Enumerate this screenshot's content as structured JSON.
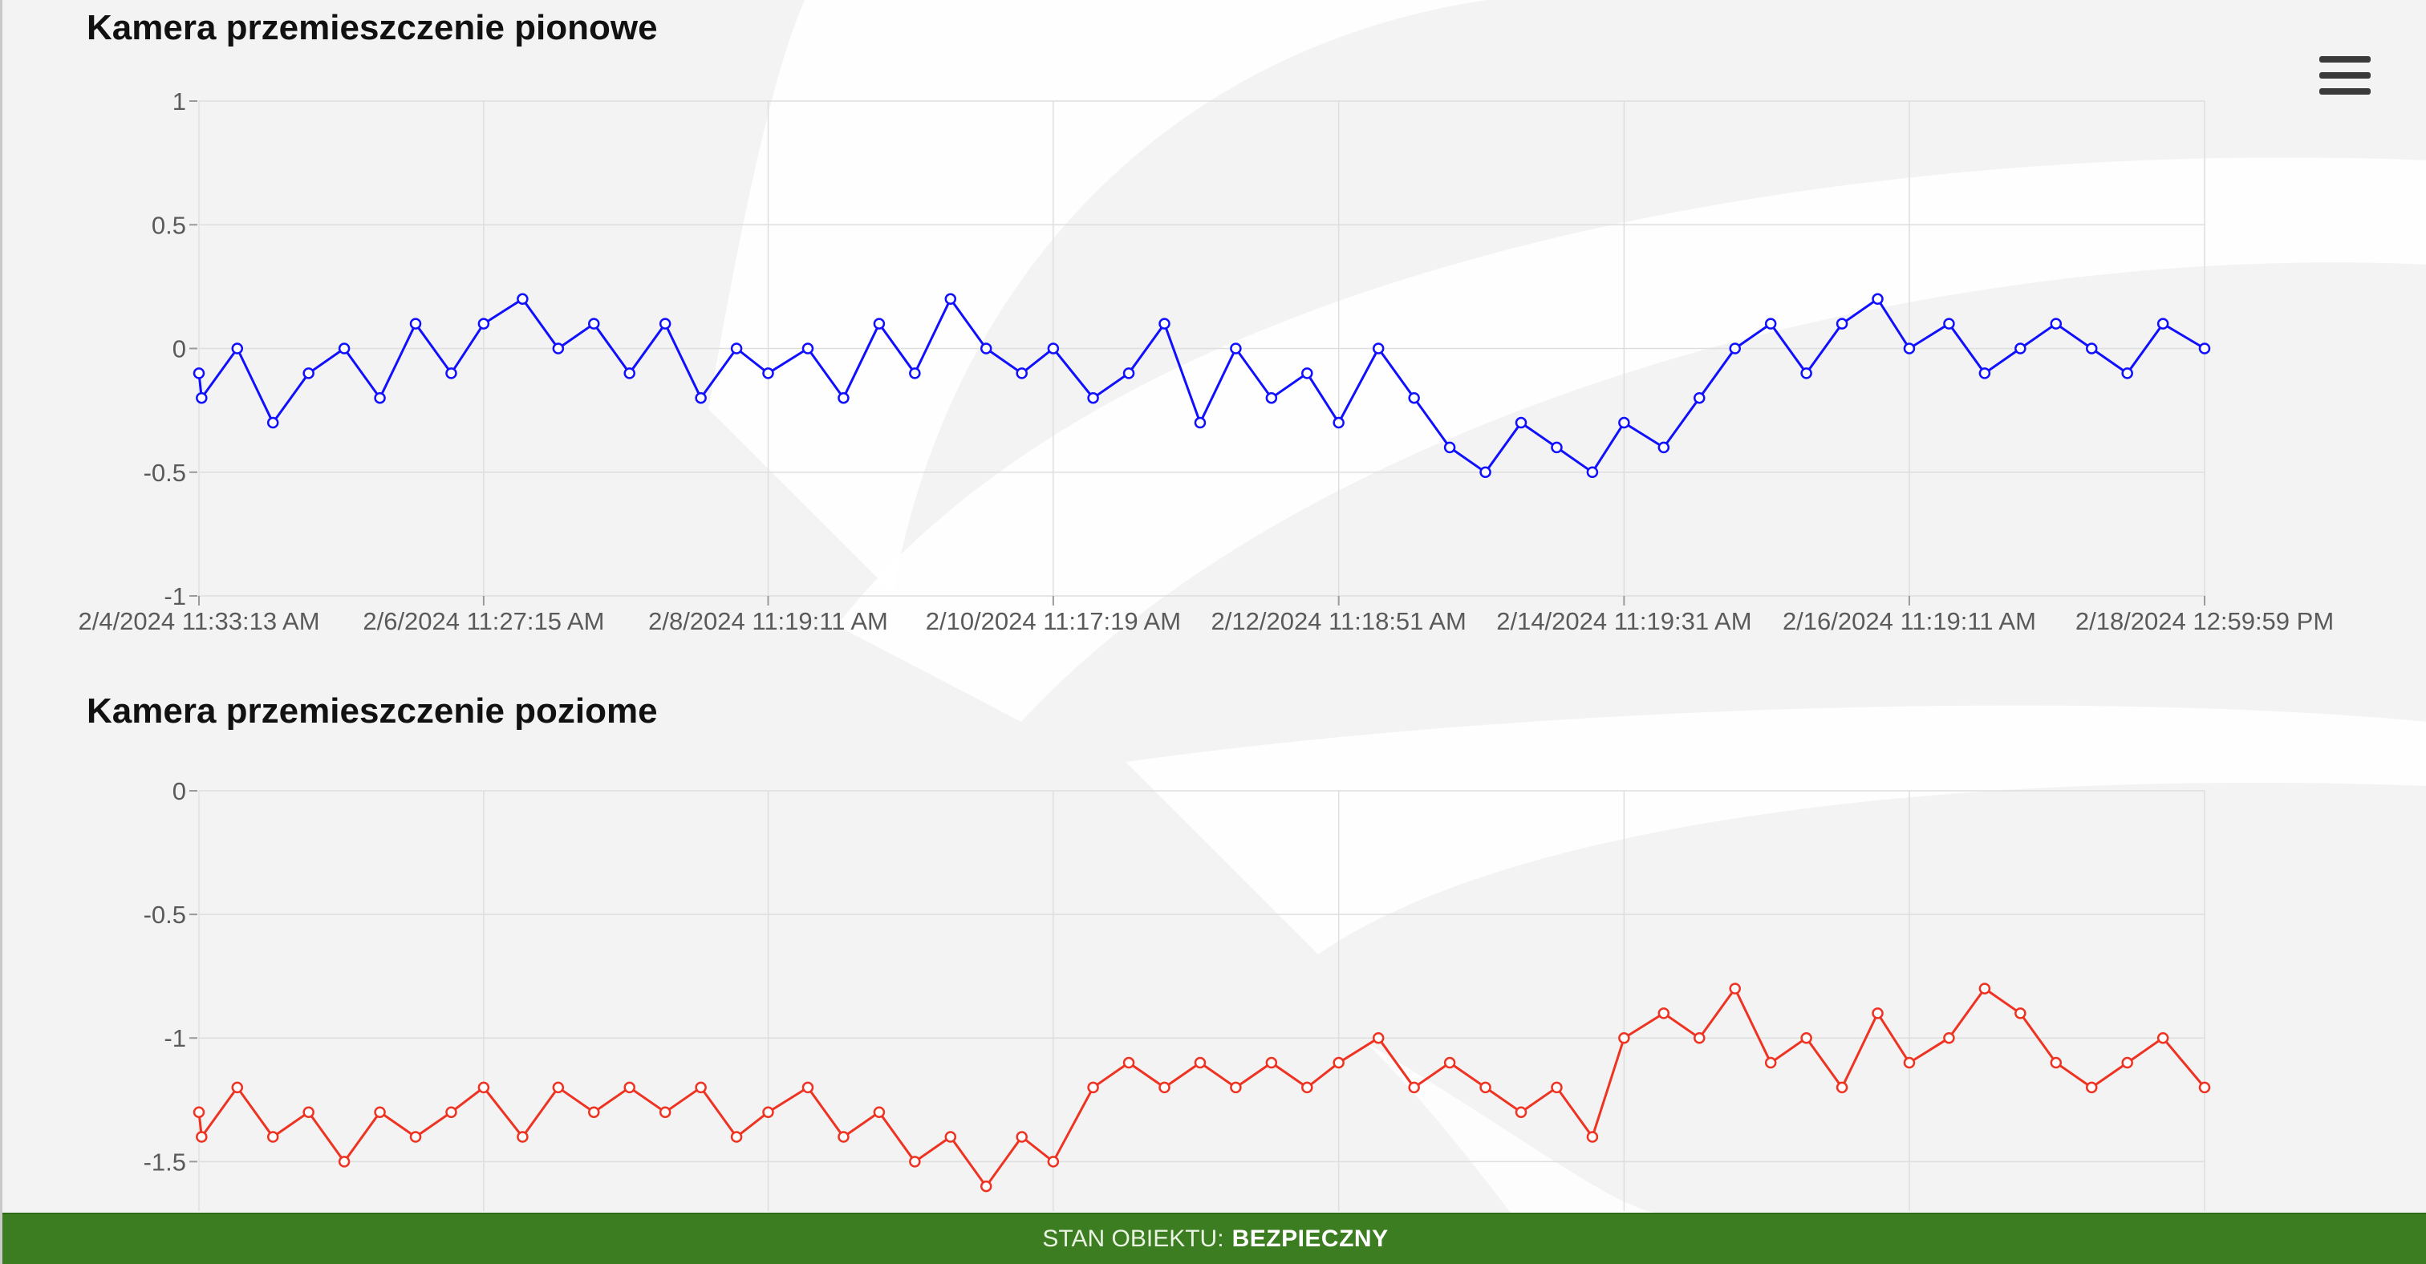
{
  "charts": [
    {
      "title": "Kamera przemieszczenie pionowe"
    },
    {
      "title": "Kamera przemieszczenie poziome"
    }
  ],
  "status": {
    "label": "STAN OBIEKTU:",
    "value": "BEZPIECZNY",
    "bar_color": "#3d7d21"
  },
  "menu": {
    "icon": "hamburger-menu-icon"
  },
  "chart_data": [
    {
      "type": "scatter",
      "mode": "lines+markers",
      "title": "Kamera przemieszczenie pionowe",
      "color": "#1010ff",
      "xlabel": "",
      "ylabel": "",
      "ylim": [
        -1,
        1
      ],
      "yticks": [
        1,
        0.5,
        0,
        -0.5,
        -1
      ],
      "ytick_labels": [
        "1",
        "0.5",
        "0",
        "-0.5",
        "-1"
      ],
      "xticks": [
        "2/4/2024 11:33:13 AM",
        "2/6/2024 11:27:15 AM",
        "2/8/2024 11:19:11 AM",
        "2/10/2024 11:17:19 AM",
        "2/12/2024 11:18:51 AM",
        "2/14/2024 11:19:31 AM",
        "2/16/2024 11:19:11 AM",
        "2/18/2024 12:59:59 PM"
      ],
      "grid": true,
      "x": [
        "2/4/2024 11:33:13 AM",
        "2/4/2024 12:00 PM",
        "2/4/2024 6:00 PM",
        "2/5/2024 12:00 AM",
        "2/5/2024 6:00 AM",
        "2/5/2024 12:00 PM",
        "2/5/2024 6:00 PM",
        "2/6/2024 12:00 AM",
        "2/6/2024 6:00 AM",
        "2/6/2024 11:27:15 AM",
        "2/6/2024 6:00 PM",
        "2/7/2024 12:00 AM",
        "2/7/2024 6:00 AM",
        "2/7/2024 12:00 PM",
        "2/7/2024 6:00 PM",
        "2/8/2024 12:00 AM",
        "2/8/2024 6:00 AM",
        "2/8/2024 11:19:11 AM",
        "2/8/2024 6:00 PM",
        "2/9/2024 12:00 AM",
        "2/9/2024 6:00 AM",
        "2/9/2024 12:00 PM",
        "2/9/2024 6:00 PM",
        "2/10/2024 12:00 AM",
        "2/10/2024 6:00 AM",
        "2/10/2024 11:17:19 AM",
        "2/10/2024 6:00 PM",
        "2/11/2024 12:00 AM",
        "2/11/2024 6:00 AM",
        "2/11/2024 12:00 PM",
        "2/11/2024 6:00 PM",
        "2/12/2024 12:00 AM",
        "2/12/2024 6:00 AM",
        "2/12/2024 11:18:51 AM",
        "2/12/2024 6:00 PM",
        "2/13/2024 12:00 AM",
        "2/13/2024 6:00 AM",
        "2/13/2024 12:00 PM",
        "2/13/2024 6:00 PM",
        "2/14/2024 12:00 AM",
        "2/14/2024 6:00 AM",
        "2/14/2024 11:19:31 AM",
        "2/14/2024 6:00 PM",
        "2/15/2024 12:00 AM",
        "2/15/2024 6:00 AM",
        "2/15/2024 12:00 PM",
        "2/15/2024 6:00 PM",
        "2/16/2024 12:00 AM",
        "2/16/2024 6:00 AM",
        "2/16/2024 11:19:11 AM",
        "2/16/2024 6:00 PM",
        "2/17/2024 12:00 AM",
        "2/17/2024 6:00 AM",
        "2/17/2024 12:00 PM",
        "2/17/2024 6:00 PM",
        "2/18/2024 12:00 AM",
        "2/18/2024 6:00 AM",
        "2/18/2024 12:59:59 PM"
      ],
      "y": [
        -0.1,
        -0.2,
        0,
        -0.3,
        -0.1,
        0,
        -0.2,
        0.1,
        -0.1,
        0.1,
        0.2,
        0,
        0.1,
        -0.1,
        0.1,
        -0.2,
        0,
        -0.1,
        0,
        -0.2,
        0.1,
        -0.1,
        0.2,
        0,
        -0.1,
        0,
        -0.2,
        -0.1,
        0.1,
        -0.3,
        0,
        -0.2,
        -0.1,
        -0.3,
        0,
        -0.2,
        -0.4,
        -0.5,
        -0.3,
        -0.4,
        -0.5,
        -0.3,
        -0.4,
        -0.2,
        0,
        0.1,
        -0.1,
        0.1,
        0.2,
        0,
        0.1,
        -0.1,
        0,
        0.1,
        0,
        -0.1,
        0.1,
        0
      ]
    },
    {
      "type": "scatter",
      "mode": "lines+markers",
      "title": "Kamera przemieszczenie poziome",
      "color": "#ee3322",
      "xlabel": "",
      "ylabel": "",
      "ylim": [
        -1.7,
        0
      ],
      "yticks": [
        0,
        -0.5,
        -1,
        -1.5
      ],
      "ytick_labels": [
        "0",
        "-0.5",
        "-1",
        "-1.5"
      ],
      "grid": true,
      "x": [
        "2/4/2024 11:33:13 AM",
        "2/4/2024 12:00 PM",
        "2/4/2024 6:00 PM",
        "2/5/2024 12:00 AM",
        "2/5/2024 6:00 AM",
        "2/5/2024 12:00 PM",
        "2/5/2024 6:00 PM",
        "2/6/2024 12:00 AM",
        "2/6/2024 6:00 AM",
        "2/6/2024 11:27:15 AM",
        "2/6/2024 6:00 PM",
        "2/7/2024 12:00 AM",
        "2/7/2024 6:00 AM",
        "2/7/2024 12:00 PM",
        "2/7/2024 6:00 PM",
        "2/8/2024 12:00 AM",
        "2/8/2024 6:00 AM",
        "2/8/2024 11:19:11 AM",
        "2/8/2024 6:00 PM",
        "2/9/2024 12:00 AM",
        "2/9/2024 6:00 AM",
        "2/9/2024 12:00 PM",
        "2/9/2024 6:00 PM",
        "2/10/2024 12:00 AM",
        "2/10/2024 6:00 AM",
        "2/10/2024 11:17:19 AM",
        "2/10/2024 6:00 PM",
        "2/11/2024 12:00 AM",
        "2/11/2024 6:00 AM",
        "2/11/2024 12:00 PM",
        "2/11/2024 6:00 PM",
        "2/12/2024 12:00 AM",
        "2/12/2024 6:00 AM",
        "2/12/2024 11:18:51 AM",
        "2/12/2024 6:00 PM",
        "2/13/2024 12:00 AM",
        "2/13/2024 6:00 AM",
        "2/13/2024 12:00 PM",
        "2/13/2024 6:00 PM",
        "2/14/2024 12:00 AM",
        "2/14/2024 6:00 AM",
        "2/14/2024 11:19:31 AM",
        "2/14/2024 6:00 PM",
        "2/15/2024 12:00 AM",
        "2/15/2024 6:00 AM",
        "2/15/2024 12:00 PM",
        "2/15/2024 6:00 PM",
        "2/16/2024 12:00 AM",
        "2/16/2024 6:00 AM",
        "2/16/2024 11:19:11 AM",
        "2/16/2024 6:00 PM",
        "2/17/2024 12:00 AM",
        "2/17/2024 6:00 AM",
        "2/17/2024 12:00 PM",
        "2/17/2024 6:00 PM",
        "2/18/2024 12:00 AM",
        "2/18/2024 6:00 AM",
        "2/18/2024 12:59:59 PM"
      ],
      "y": [
        -1.3,
        -1.4,
        -1.2,
        -1.4,
        -1.3,
        -1.5,
        -1.3,
        -1.4,
        -1.3,
        -1.2,
        -1.4,
        -1.2,
        -1.3,
        -1.2,
        -1.3,
        -1.2,
        -1.4,
        -1.3,
        -1.2,
        -1.4,
        -1.3,
        -1.5,
        -1.4,
        -1.6,
        -1.4,
        -1.5,
        -1.2,
        -1.1,
        -1.2,
        -1.1,
        -1.2,
        -1.1,
        -1.2,
        -1.1,
        -1.0,
        -1.2,
        -1.1,
        -1.2,
        -1.3,
        -1.2,
        -1.4,
        -1.0,
        -0.9,
        -1.0,
        -0.8,
        -1.1,
        -1.0,
        -1.2,
        -0.9,
        -1.1,
        -1.0,
        -0.8,
        -0.9,
        -1.1,
        -1.2,
        -1.1,
        -1.0,
        -1.2
      ]
    }
  ]
}
